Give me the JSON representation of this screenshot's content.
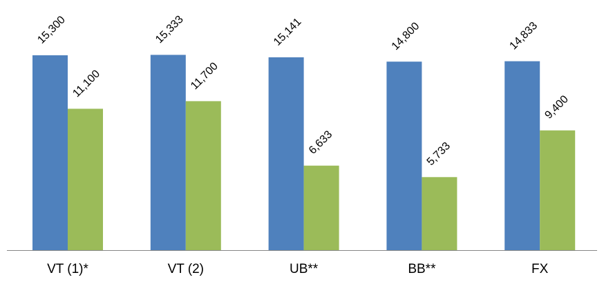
{
  "chart_data": {
    "type": "bar",
    "categories": [
      "VT (1)*",
      "VT (2)",
      "UB**",
      "BB**",
      "FX"
    ],
    "series": [
      {
        "values": [
          15300,
          15333,
          15141,
          14800,
          14833
        ],
        "labels": [
          "15,300",
          "15,333",
          "15,141",
          "14,800",
          "14,833"
        ],
        "color": "#4f81bd"
      },
      {
        "values": [
          11100,
          11700,
          6633,
          5733,
          9400
        ],
        "labels": [
          "11,100",
          "11,700",
          "6,633",
          "5,733",
          "9,400"
        ],
        "color": "#9bbb59"
      }
    ],
    "ylim": [
      0,
      18000
    ],
    "grid": false,
    "legend": "none",
    "axis_color": "#868686"
  }
}
